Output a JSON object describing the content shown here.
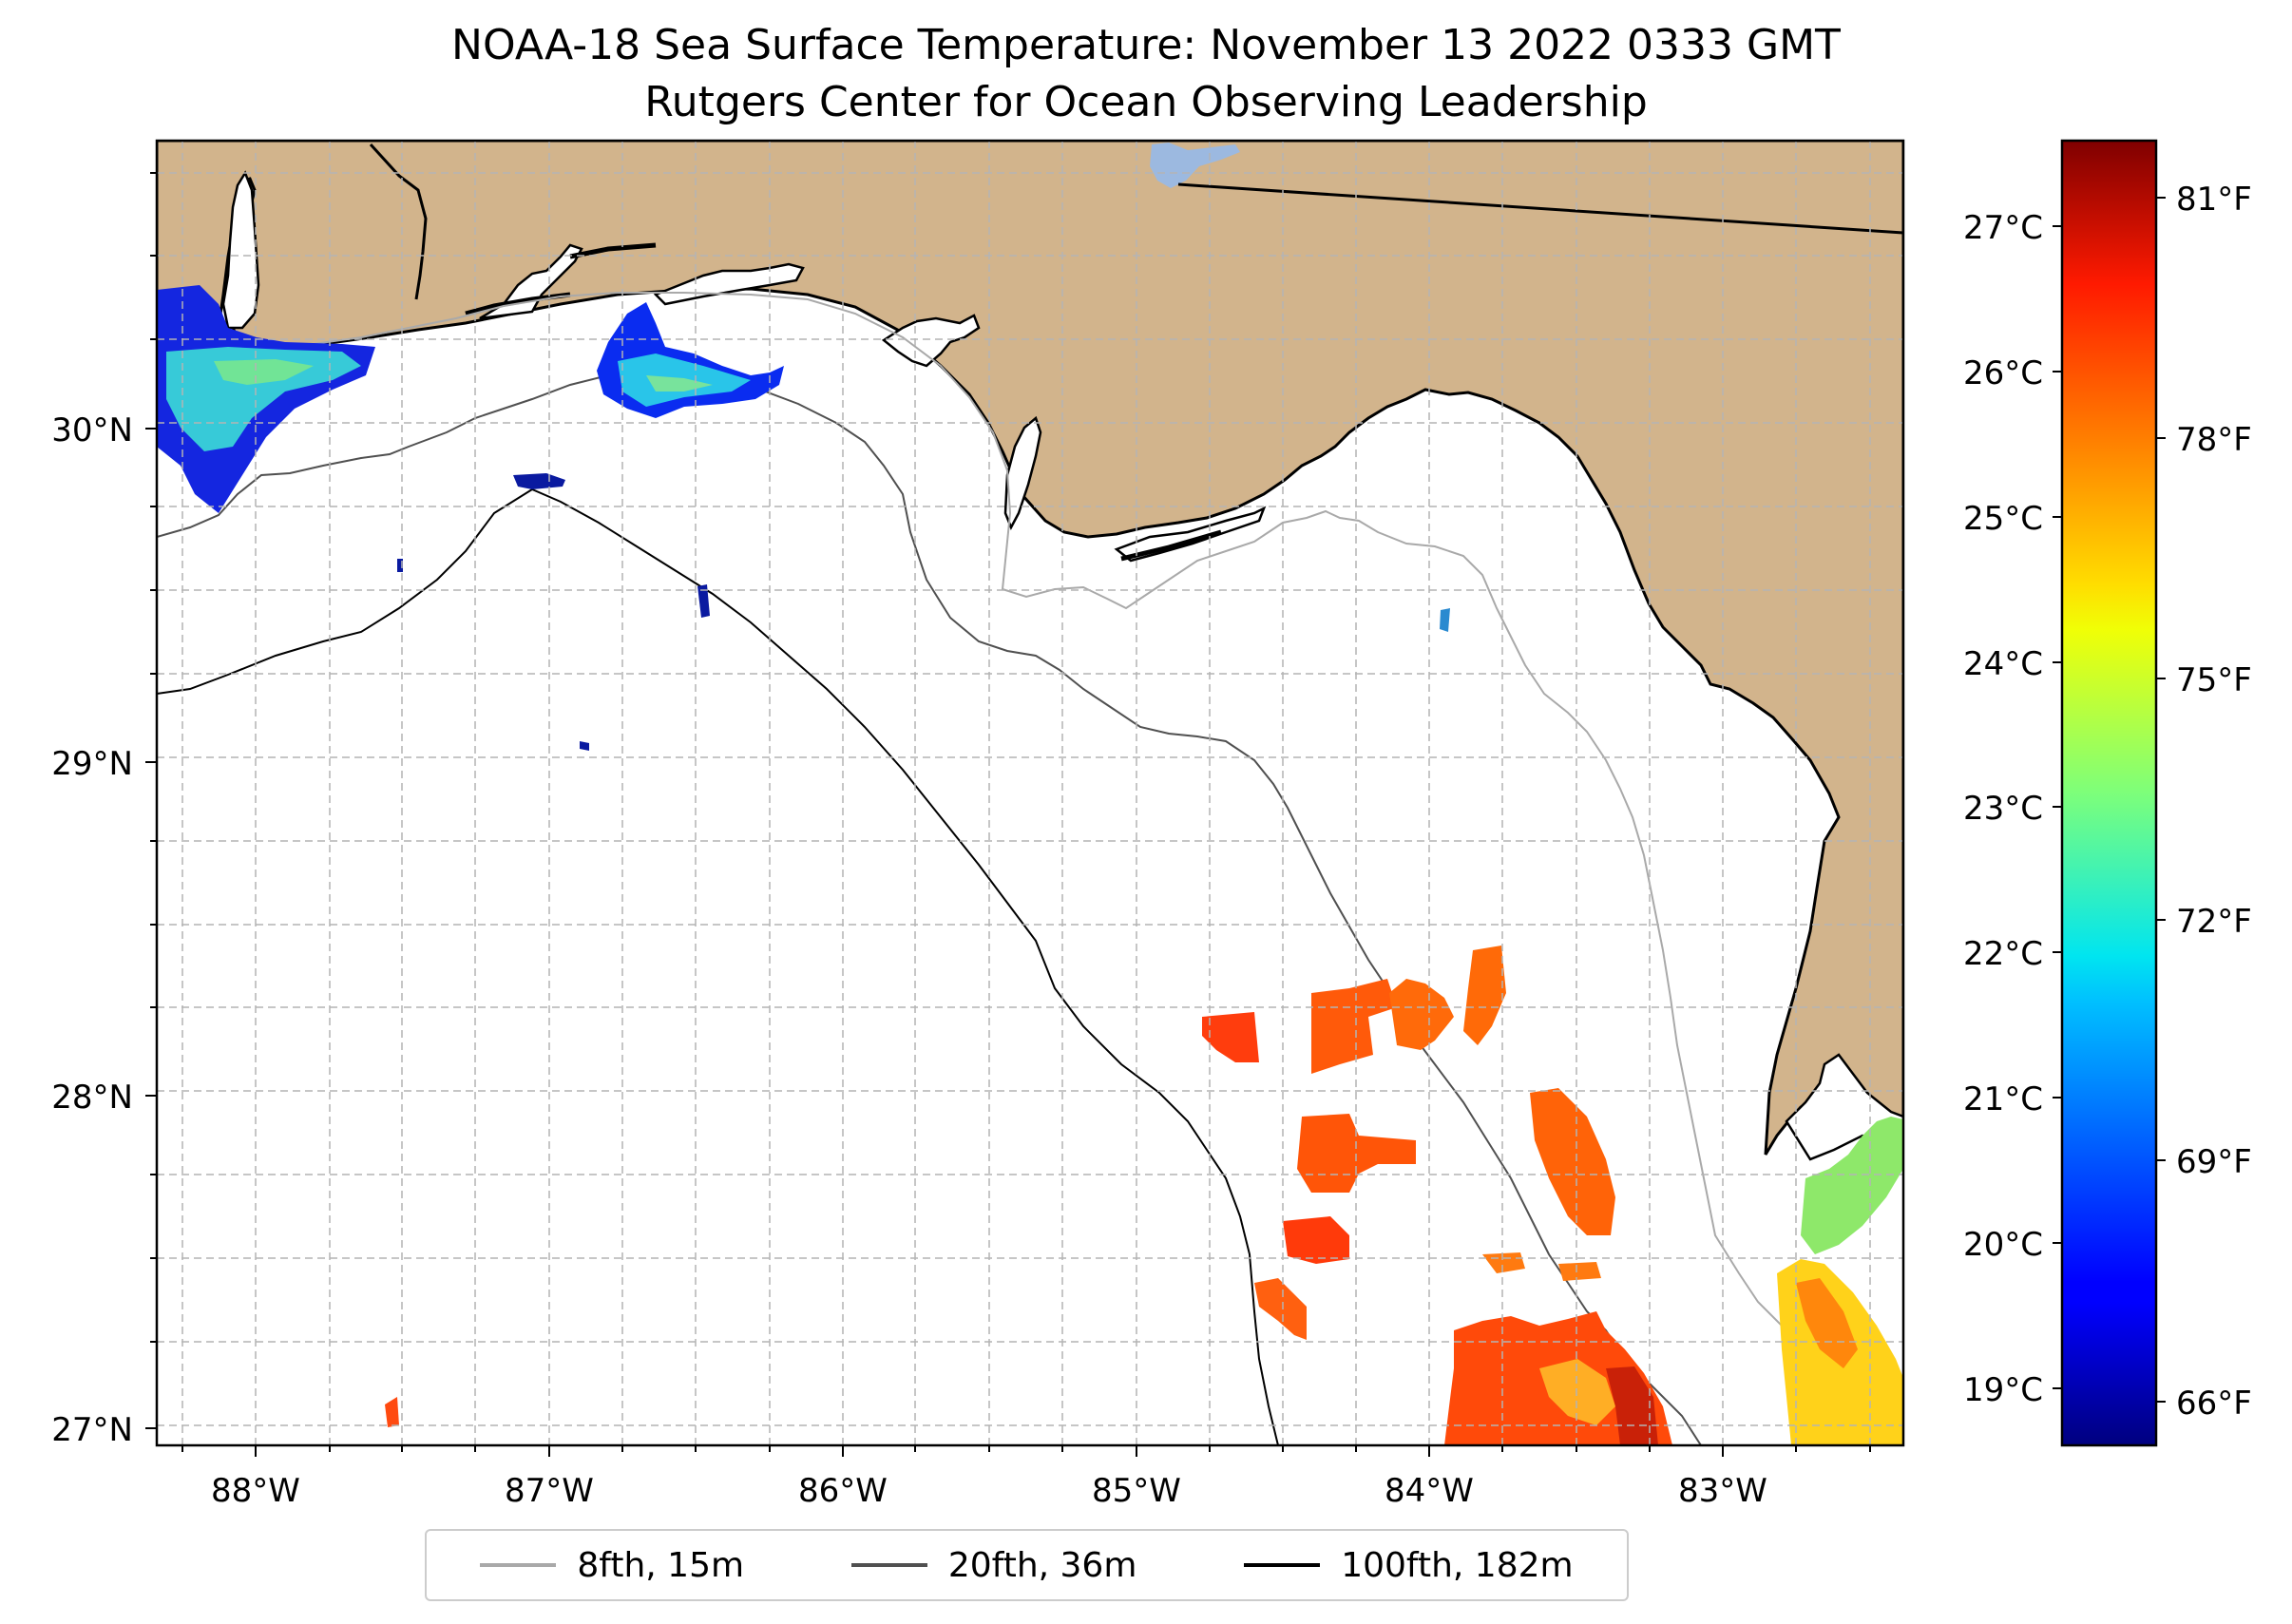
{
  "title": {
    "line1": "NOAA-18 Sea Surface Temperature: November 13 2022 0333 GMT",
    "line2": "Rutgers Center for Ocean Observing Leadership"
  },
  "map": {
    "lon_range": [
      -88.33,
      -82.4
    ],
    "lat_range": [
      26.93,
      30.85
    ],
    "land_color": "#d2b48c",
    "water_color": "#ffffff",
    "lake_color": "#9cb9e0",
    "lat_labels": [
      "30°N",
      "29°N",
      "28°N",
      "27°N"
    ],
    "lon_labels": [
      "88°W",
      "87°W",
      "86°W",
      "85°W",
      "84°W",
      "83°W"
    ]
  },
  "colorbar": {
    "colormap": "jet",
    "range_f": [
      65.6,
      82.1
    ],
    "celsius_labels": [
      "27°C",
      "26°C",
      "25°C",
      "24°C",
      "23°C",
      "22°C",
      "21°C",
      "20°C",
      "19°C"
    ],
    "fahrenheit_labels": [
      "81°F",
      "78°F",
      "75°F",
      "72°F",
      "69°F",
      "66°F"
    ]
  },
  "legend": {
    "items": [
      {
        "label": "8fth, 15m",
        "color": "#a9a9a9"
      },
      {
        "label": "20fth, 36m",
        "color": "#505050"
      },
      {
        "label": "100fth, 182m",
        "color": "#000000"
      }
    ]
  }
}
